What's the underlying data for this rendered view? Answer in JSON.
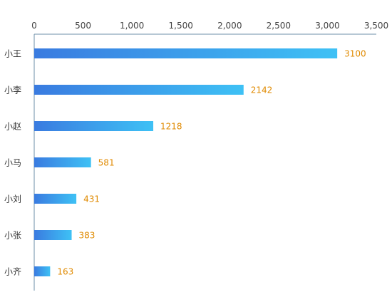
{
  "chart_data": {
    "type": "bar",
    "orientation": "horizontal",
    "categories": [
      "小王",
      "小李",
      "小赵",
      "小马",
      "小刘",
      "小张",
      "小齐"
    ],
    "values": [
      3100,
      2142,
      1218,
      581,
      431,
      383,
      163
    ],
    "xlim": [
      0,
      3500
    ],
    "x_ticks": [
      0,
      500,
      1000,
      1500,
      2000,
      2500,
      3000,
      3500
    ],
    "x_tick_labels": [
      "0",
      "500",
      "1,000",
      "1,500",
      "2,000",
      "2,500",
      "3,000",
      "3,500"
    ],
    "x_axis_position": "top",
    "grid": false,
    "legend": "none",
    "data_labels": true
  },
  "colors": {
    "bar_start": "#3a7be0",
    "bar_end": "#3ec1f5",
    "value_label": "#e08a00",
    "axis_line": "#6e8fa8",
    "tick_label": "#444444",
    "category_label": "#333333"
  }
}
